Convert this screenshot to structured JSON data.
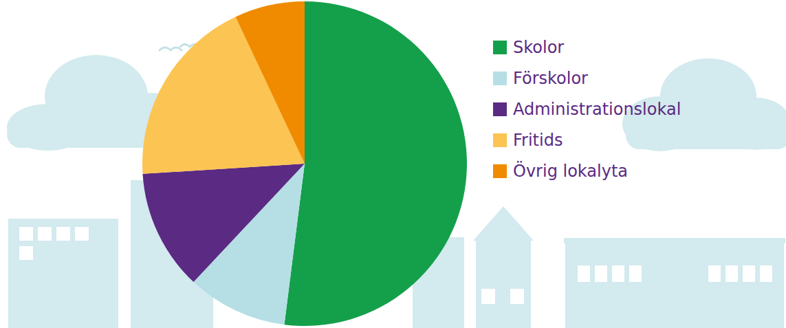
{
  "chart_data": {
    "type": "pie",
    "categories": [
      "Skolor",
      "Förskolor",
      "Administrationslokal",
      "Fritids",
      "Övrig lokalyta"
    ],
    "values": [
      52,
      10,
      12,
      19,
      7
    ],
    "colors": [
      "#14a04b",
      "#b5dfe4",
      "#5b2a83",
      "#fcc452",
      "#f08b00"
    ],
    "legend": "right"
  }
}
